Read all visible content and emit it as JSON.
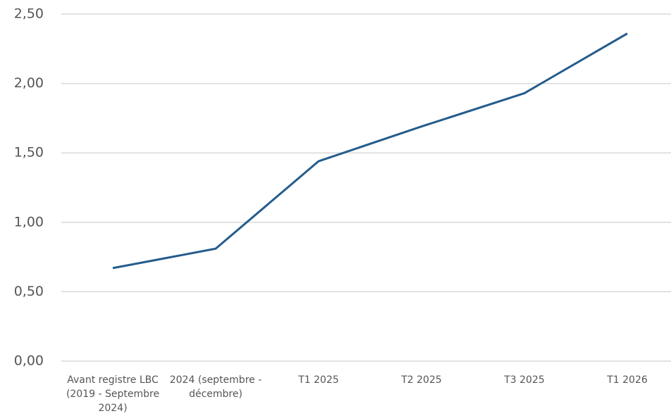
{
  "chart_data": {
    "type": "line",
    "categories": [
      "Avant registre LBC (2019 - Septembre 2024)",
      "2024 (septembre - décembre)",
      "T1 2025",
      "T2 2025",
      "T3 2025",
      "T1 2026"
    ],
    "series": [
      {
        "color": "#245c8c",
        "values": [
          0.67,
          0.81,
          1.44,
          1.69,
          1.93,
          2.36
        ]
      }
    ],
    "ylim": [
      0,
      2.5
    ],
    "yticks": [
      {
        "value": 0,
        "label": "0,00"
      },
      {
        "value": 0.5,
        "label": "0,50"
      },
      {
        "value": 1,
        "label": "1,00"
      },
      {
        "value": 1.5,
        "label": "1,50"
      },
      {
        "value": 2,
        "label": "2,00"
      },
      {
        "value": 2.5,
        "label": "2,50"
      }
    ],
    "grid": true
  }
}
